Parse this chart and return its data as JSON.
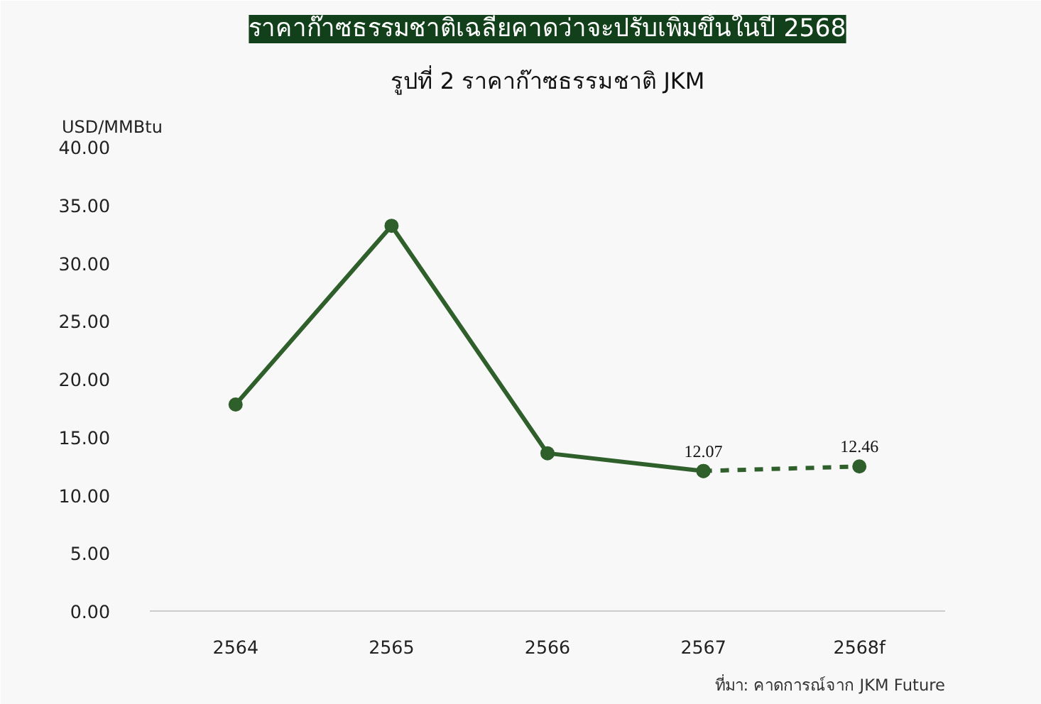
{
  "chart_data": {
    "type": "line",
    "title": "ราคาก๊าซธรรมชาติเฉลี่ยคาดว่าจะปรับเพิ่มขึ้นในปี 2568",
    "subtitle": "รูปที่ 2 ราคาก๊าซธรรมชาติ JKM",
    "ylabel": "USD/MMBtu",
    "categories": [
      "2564",
      "2565",
      "2566",
      "2567",
      "2568f"
    ],
    "series": [
      {
        "color": "#2f5f2b",
        "line_style": "solid",
        "values": [
          17.8,
          33.2,
          13.6,
          12.07,
          null
        ]
      },
      {
        "color": "#2f5f2b",
        "line_style": "dashed",
        "values": [
          null,
          null,
          null,
          12.07,
          12.46
        ],
        "value_labels": [
          null,
          null,
          null,
          "12.07",
          "12.46"
        ]
      }
    ],
    "marker": "circle",
    "grid": false,
    "ylim": [
      0,
      40
    ],
    "yticks": [
      {
        "value": 0,
        "label": "0.00"
      },
      {
        "value": 5,
        "label": "5.00"
      },
      {
        "value": 10,
        "label": "10.00"
      },
      {
        "value": 15,
        "label": "15.00"
      },
      {
        "value": 20,
        "label": "20.00"
      },
      {
        "value": 25,
        "label": "25.00"
      },
      {
        "value": 30,
        "label": "30.00"
      },
      {
        "value": 35,
        "label": "35.00"
      },
      {
        "value": 40,
        "label": "40.00"
      }
    ],
    "annotations": [
      "ที่มา: คาดการณ์จาก JKM Future"
    ]
  }
}
